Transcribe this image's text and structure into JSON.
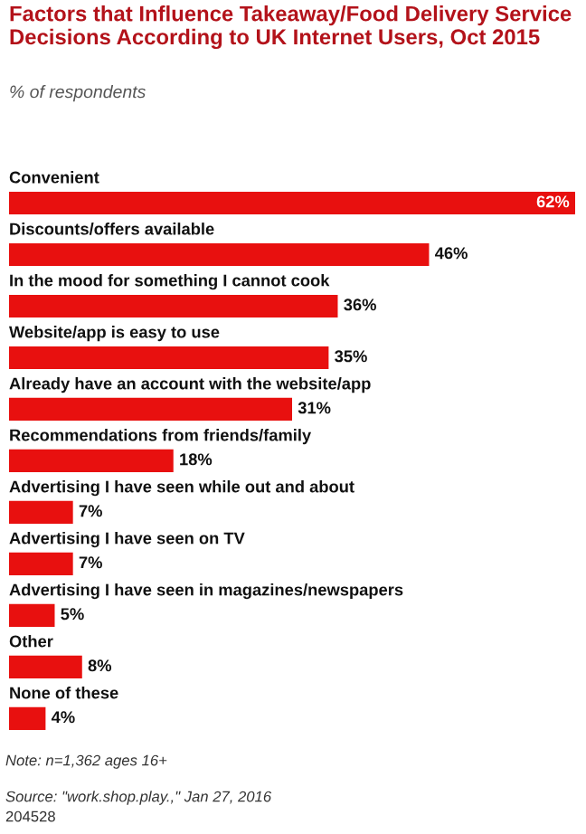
{
  "chart_data": {
    "type": "bar",
    "orientation": "horizontal",
    "title": "Factors that Influence Takeaway/Food Delivery Service Decisions According to UK Internet Users, Oct 2015",
    "subtitle": "% of respondents",
    "categories": [
      "Convenient",
      "Discounts/offers available",
      "In the mood for something I cannot cook",
      "Website/app is easy to use",
      "Already have an account with the website/app",
      "Recommendations from friends/family",
      "Advertising I have seen while out and about",
      "Advertising I have seen on TV",
      "Advertising I have seen in magazines/newspapers",
      "Other",
      "None of these"
    ],
    "values": [
      62,
      46,
      36,
      35,
      31,
      18,
      7,
      7,
      5,
      8,
      4
    ],
    "value_labels": [
      "62%",
      "46%",
      "36%",
      "35%",
      "31%",
      "18%",
      "7%",
      "7%",
      "5%",
      "8%",
      "4%"
    ],
    "color": "#e8100f",
    "annotations": [
      "Note: n=1,362 ages 16+",
      "Source: \"work.shop.play.,\" Jan 27, 2016",
      "204528"
    ]
  }
}
